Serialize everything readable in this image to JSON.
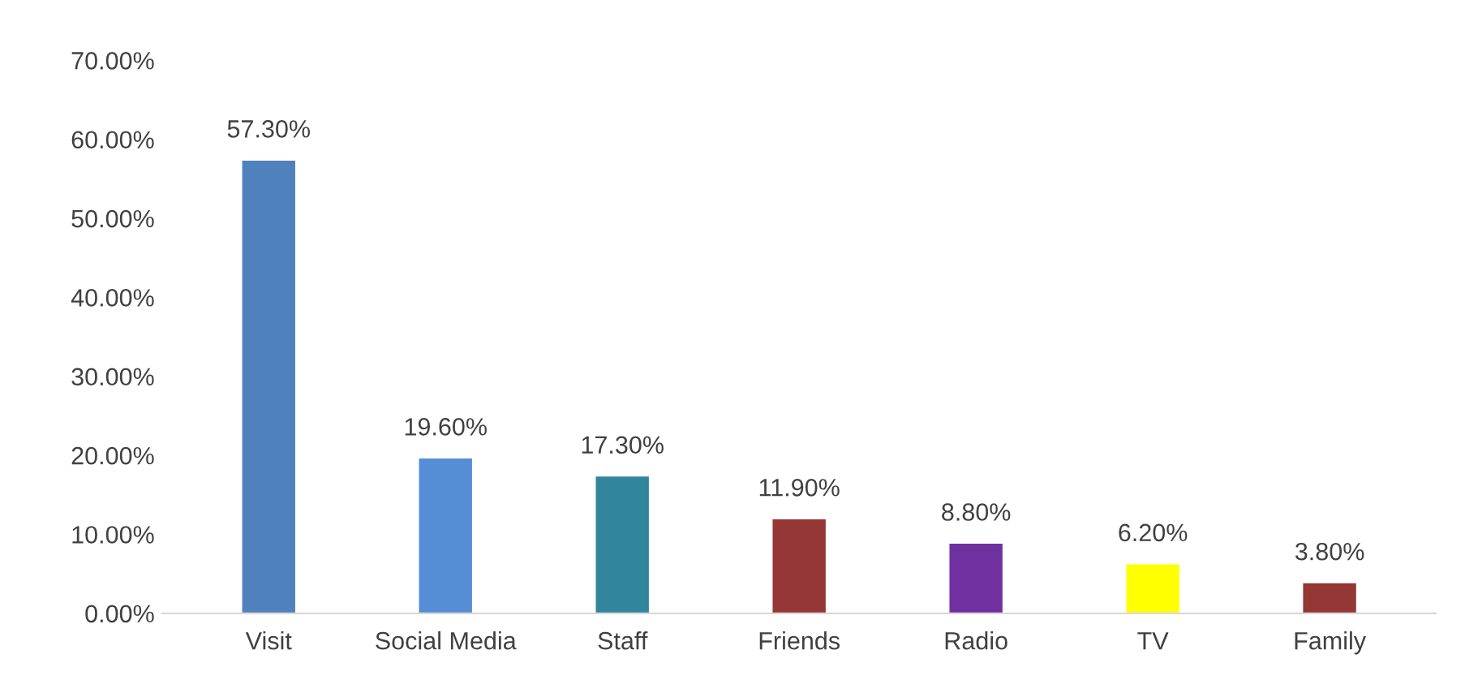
{
  "chart_data": {
    "type": "bar",
    "categories": [
      "Visit",
      "Social Media",
      "Staff",
      "Friends",
      "Radio",
      "TV",
      "Family"
    ],
    "values": [
      57.3,
      19.6,
      17.3,
      11.9,
      8.8,
      6.2,
      3.8
    ],
    "colors": [
      "#4f81bd",
      "#558ed5",
      "#31859c",
      "#953735",
      "#7030a0",
      "#ffff00",
      "#953735"
    ],
    "value_labels": [
      "57.30%",
      "19.60%",
      "17.30%",
      "11.90%",
      "8.80%",
      "6.20%",
      "3.80%"
    ],
    "ylim": [
      0,
      70
    ],
    "yticks": [
      {
        "value": 0,
        "label": "0.00%"
      },
      {
        "value": 10,
        "label": "10.00%"
      },
      {
        "value": 20,
        "label": "20.00%"
      },
      {
        "value": 30,
        "label": "30.00%"
      },
      {
        "value": 40,
        "label": "40.00%"
      },
      {
        "value": 50,
        "label": "50.00%"
      },
      {
        "value": 60,
        "label": "60.00%"
      },
      {
        "value": 70,
        "label": "70.00%"
      }
    ],
    "grid": false,
    "legend": false
  }
}
